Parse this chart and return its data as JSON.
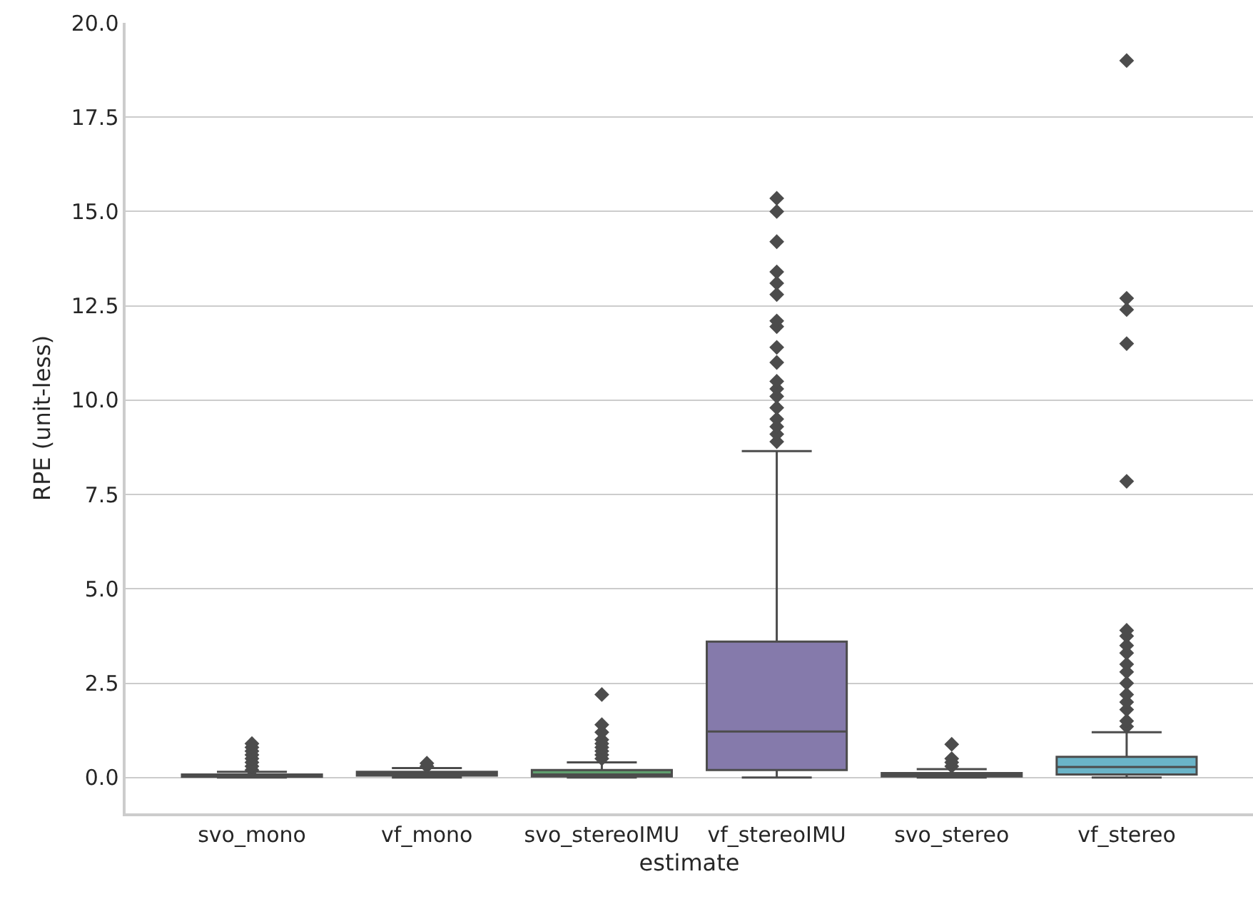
{
  "chart_data": {
    "type": "box",
    "xlabel": "estimate",
    "ylabel": "RPE (unit-less)",
    "categories": [
      "svo_mono",
      "vf_mono",
      "svo_stereoIMU",
      "vf_stereoIMU",
      "svo_stereo",
      "vf_stereo"
    ],
    "colors": [
      "#5975a4",
      "#cc8963",
      "#5f9e6e",
      "#857aab",
      "#8d7866",
      "#6ab4c8"
    ],
    "boxes": [
      {
        "low": 0,
        "q1": 0.02,
        "median": 0.05,
        "q3": 0.08,
        "high": 0.15,
        "outliers": [
          0.2,
          0.3,
          0.4,
          0.5,
          0.6,
          0.7,
          0.8,
          0.9
        ]
      },
      {
        "low": 0,
        "q1": 0.05,
        "median": 0.1,
        "q3": 0.15,
        "high": 0.25,
        "outliers": [
          0.3,
          0.38
        ]
      },
      {
        "low": 0,
        "q1": 0.03,
        "median": 0.08,
        "q3": 0.2,
        "high": 0.4,
        "outliers": [
          0.5,
          0.6,
          0.7,
          0.8,
          0.9,
          1.0,
          1.2,
          1.4,
          2.2
        ]
      },
      {
        "low": 0,
        "q1": 0.2,
        "median": 1.22,
        "q3": 3.6,
        "high": 8.65,
        "outliers": [
          8.9,
          9.1,
          9.3,
          9.5,
          9.8,
          10.1,
          10.3,
          10.5,
          11.0,
          11.4,
          11.95,
          12.1,
          12.8,
          13.1,
          13.4,
          14.2,
          15.0,
          15.35
        ]
      },
      {
        "low": 0,
        "q1": 0.03,
        "median": 0.06,
        "q3": 0.12,
        "high": 0.22,
        "outliers": [
          0.3,
          0.4,
          0.5,
          0.88
        ]
      },
      {
        "low": 0,
        "q1": 0.08,
        "median": 0.28,
        "q3": 0.55,
        "high": 1.2,
        "outliers": [
          1.35,
          1.5,
          1.8,
          2.0,
          2.2,
          2.5,
          2.8,
          3.0,
          3.3,
          3.5,
          3.75,
          3.9,
          7.85,
          11.5,
          12.4,
          12.7,
          19.0
        ]
      }
    ],
    "ylim": [
      -0.95,
      20.0
    ],
    "yticks": [
      {
        "value": 0,
        "label": "0.0"
      },
      2.5,
      {
        "value": 5,
        "label": "5.0"
      },
      7.5,
      {
        "value": 10,
        "label": "10.0"
      },
      12.5,
      {
        "value": 15,
        "label": "15.0"
      },
      17.5,
      {
        "value": 20,
        "label": "20.0"
      }
    ],
    "grid": "y",
    "marker": "diamond"
  }
}
